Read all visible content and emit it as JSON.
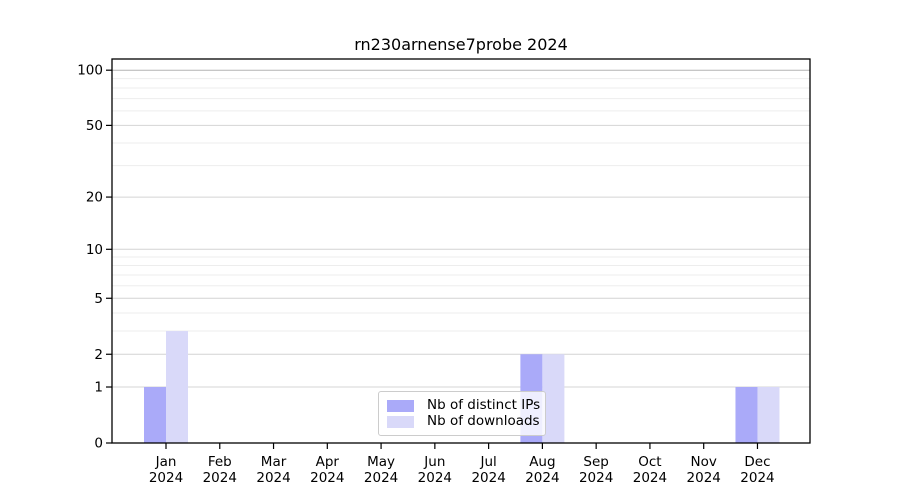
{
  "chart_data": {
    "type": "bar",
    "title": "rn230arnense7probe 2024",
    "scale": "log1p",
    "grid": "on",
    "categories": [
      "Jan",
      "Feb",
      "Mar",
      "Apr",
      "May",
      "Jun",
      "Jul",
      "Aug",
      "Sep",
      "Oct",
      "Nov",
      "Dec"
    ],
    "x_tick_year": "2024",
    "series": [
      {
        "name": "Nb of distinct IPs",
        "color": "#aaaaf9",
        "values": [
          1,
          0,
          0,
          0,
          0,
          0,
          0,
          2,
          0,
          0,
          0,
          1
        ]
      },
      {
        "name": "Nb of downloads",
        "color": "#d9d9f9",
        "values": [
          3,
          0,
          0,
          0,
          0,
          0,
          0,
          2,
          0,
          0,
          0,
          1
        ]
      }
    ],
    "y_major_ticks": [
      0,
      1,
      2,
      5,
      10,
      20,
      50,
      100
    ],
    "y_minor_ticks": [
      3,
      4,
      6,
      7,
      8,
      9,
      30,
      40,
      60,
      70,
      80,
      90
    ],
    "ylim": [
      0,
      116
    ],
    "legend_position": "lower center"
  },
  "colors": {
    "axis": "#000000",
    "tick_label": "#000000",
    "grid_major": "#d4d4d4",
    "grid_major_top": "#b3b3b3",
    "grid_minor": "#ededed",
    "background": "#ffffff",
    "legend_border": "#cccccc"
  }
}
